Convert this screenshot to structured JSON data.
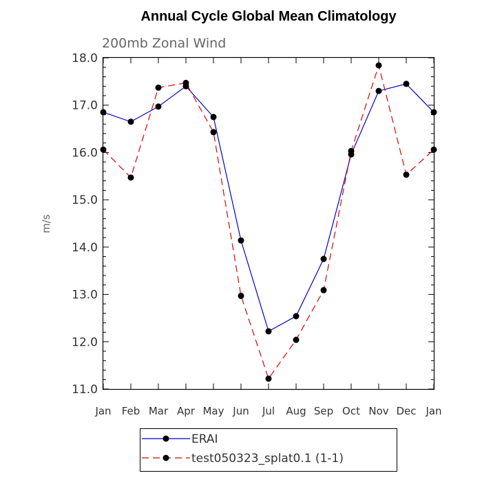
{
  "chart_data": {
    "type": "line",
    "title": "Annual Cycle Global Mean Climatology",
    "subtitle": "200mb Zonal Wind",
    "xlabel": "",
    "ylabel": "m/s",
    "ylim": [
      11.0,
      18.0
    ],
    "yticks": [
      "11.0",
      "12.0",
      "13.0",
      "14.0",
      "15.0",
      "16.0",
      "17.0",
      "18.0"
    ],
    "categories": [
      "Jan",
      "Feb",
      "Mar",
      "Apr",
      "May",
      "Jun",
      "Jul",
      "Aug",
      "Sep",
      "Oct",
      "Nov",
      "Dec",
      "Jan"
    ],
    "series": [
      {
        "name": "ERAI",
        "color": "#0000cc",
        "style": "solid",
        "values": [
          16.85,
          16.65,
          16.97,
          17.4,
          16.75,
          14.14,
          12.22,
          12.54,
          13.75,
          15.96,
          17.3,
          17.45,
          16.85
        ]
      },
      {
        "name": "test050323_splat0.1 (1-1)",
        "color": "#dd0000",
        "style": "dashed",
        "values": [
          16.06,
          15.47,
          17.37,
          17.47,
          16.43,
          12.97,
          11.22,
          12.04,
          13.09,
          16.03,
          17.84,
          15.53,
          16.06
        ]
      }
    ],
    "legend_position": "bottom-left",
    "grid": false
  }
}
